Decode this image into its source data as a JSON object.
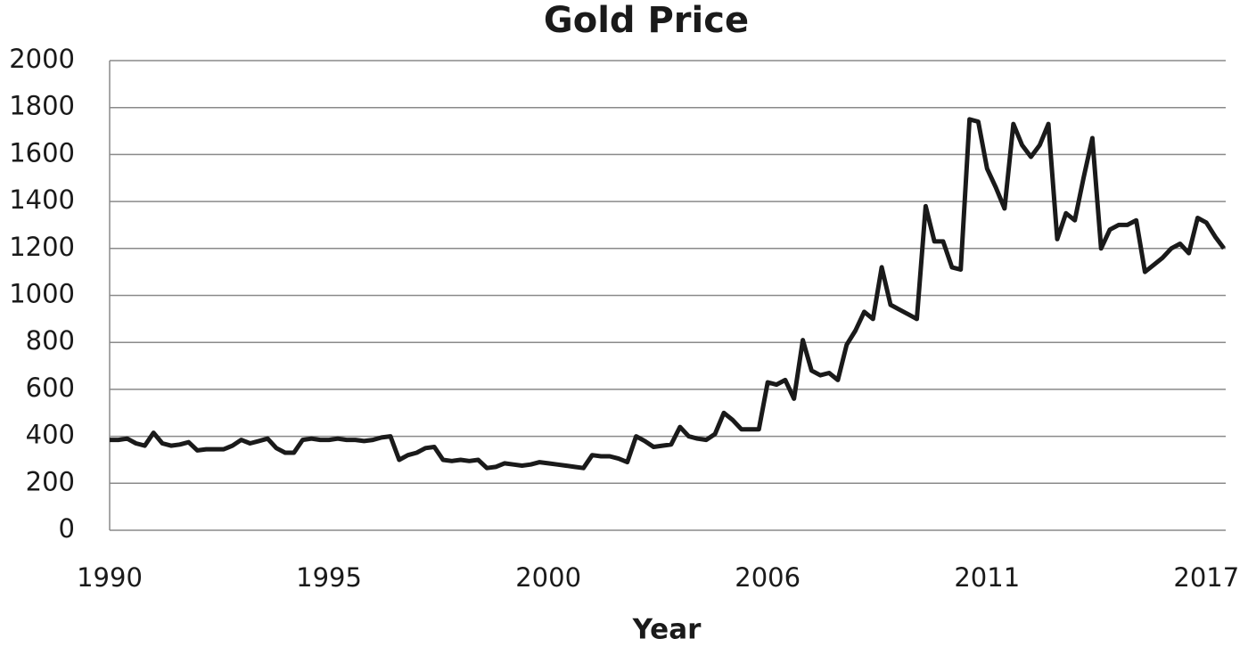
{
  "chart_data": {
    "type": "line",
    "title": "Gold Price",
    "x_label": "Year",
    "categories": [
      "1990",
      null,
      null,
      null,
      null,
      null,
      null,
      null,
      null,
      null,
      null,
      null,
      null,
      null,
      null,
      null,
      null,
      null,
      null,
      null,
      null,
      null,
      null,
      null,
      null,
      "1995",
      null,
      null,
      null,
      null,
      null,
      null,
      null,
      null,
      null,
      null,
      null,
      null,
      null,
      null,
      null,
      null,
      null,
      null,
      null,
      null,
      null,
      null,
      null,
      null,
      "2000",
      null,
      null,
      null,
      null,
      null,
      null,
      null,
      null,
      null,
      null,
      null,
      null,
      null,
      null,
      null,
      null,
      null,
      null,
      null,
      null,
      null,
      null,
      null,
      null,
      "2006",
      null,
      null,
      null,
      null,
      null,
      null,
      null,
      null,
      null,
      null,
      null,
      null,
      null,
      null,
      null,
      null,
      null,
      null,
      null,
      null,
      null,
      null,
      null,
      null,
      "2011",
      null,
      null,
      null,
      null,
      null,
      null,
      null,
      null,
      null,
      null,
      null,
      null,
      null,
      null,
      null,
      null,
      null,
      null,
      null,
      null,
      null,
      null,
      null,
      null,
      "2017",
      null,
      null
    ],
    "values": [
      385,
      385,
      390,
      370,
      360,
      415,
      370,
      360,
      365,
      375,
      340,
      345,
      345,
      345,
      360,
      385,
      370,
      380,
      390,
      350,
      330,
      330,
      385,
      390,
      385,
      385,
      390,
      385,
      385,
      380,
      385,
      395,
      400,
      300,
      320,
      330,
      350,
      355,
      300,
      295,
      300,
      295,
      300,
      265,
      270,
      285,
      280,
      275,
      280,
      290,
      285,
      280,
      275,
      270,
      265,
      320,
      315,
      315,
      305,
      290,
      400,
      380,
      355,
      360,
      365,
      440,
      400,
      390,
      385,
      410,
      500,
      470,
      430,
      430,
      430,
      630,
      620,
      640,
      560,
      810,
      680,
      660,
      670,
      640,
      790,
      850,
      930,
      900,
      1120,
      960,
      940,
      920,
      900,
      1380,
      1230,
      1230,
      1120,
      1110,
      1750,
      1740,
      1540,
      1460,
      1370,
      1730,
      1640,
      1590,
      1640,
      1730,
      1240,
      1350,
      1320,
      1500,
      1670,
      1200,
      1280,
      1300,
      1300,
      1320,
      1100,
      1130,
      1160,
      1200,
      1220,
      1180,
      1330,
      1310,
      1250,
      1200
    ],
    "color": "#1a1a1a",
    "ylim": [
      0,
      2000
    ],
    "yticks": [
      0,
      200,
      400,
      600,
      800,
      1000,
      1200,
      1400,
      1600,
      1800,
      2000
    ],
    "grid": true
  }
}
